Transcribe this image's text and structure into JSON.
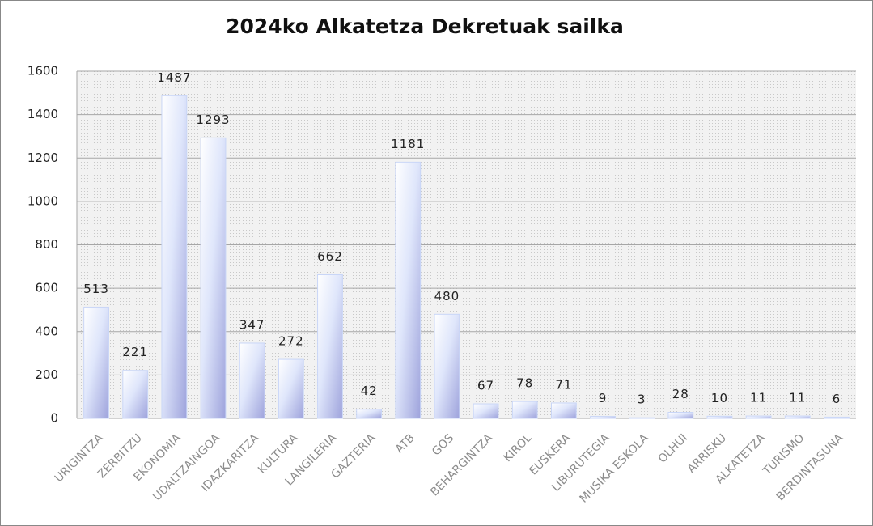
{
  "chart_data": {
    "type": "bar",
    "title": "2024ko Alkatetza Dekretuak sailka",
    "categories": [
      "URIGINTZA",
      "ZERBITZU",
      "EKONOMIA",
      "UDALTZAINGOA",
      "IDAZKARITZA",
      "KULTURA",
      "LANGILERIA",
      "GAZTERIA",
      "ATB",
      "GOS",
      "BEHARGINTZA",
      "KIROL",
      "EUSKERA",
      "LIBURUTEGIA",
      "MUSIKA ESKOLA",
      "OLHUI",
      "ARRISKU",
      "ALKATETZA",
      "TURISMO",
      "BERDINTASUNA"
    ],
    "values": [
      513,
      221,
      1487,
      1293,
      347,
      272,
      662,
      42,
      1181,
      480,
      67,
      78,
      71,
      9,
      3,
      28,
      10,
      11,
      11,
      6
    ],
    "color": "#c9d6f7",
    "ylim": [
      0,
      1600
    ],
    "yticks": [
      0,
      200,
      400,
      600,
      800,
      1000,
      1200,
      1400,
      1600
    ],
    "grid": true
  }
}
